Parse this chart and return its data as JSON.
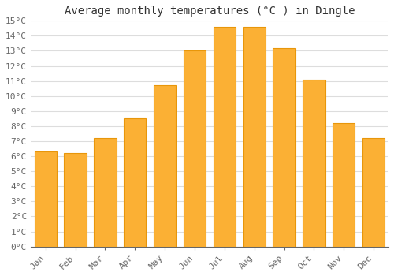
{
  "title": "Average monthly temperatures (°C ) in Dingle",
  "months": [
    "Jan",
    "Feb",
    "Mar",
    "Apr",
    "May",
    "Jun",
    "Jul",
    "Aug",
    "Sep",
    "Oct",
    "Nov",
    "Dec"
  ],
  "values": [
    6.3,
    6.2,
    7.2,
    8.5,
    10.7,
    13.0,
    14.6,
    14.6,
    13.2,
    11.1,
    8.2,
    7.2
  ],
  "bar_color": "#FBB034",
  "bar_edge_color": "#E8960A",
  "ylim": [
    0,
    15
  ],
  "yticks": [
    0,
    1,
    2,
    3,
    4,
    5,
    6,
    7,
    8,
    9,
    10,
    11,
    12,
    13,
    14,
    15
  ],
  "background_color": "#ffffff",
  "grid_color": "#dddddd",
  "title_fontsize": 10,
  "tick_fontsize": 8,
  "font_family": "monospace"
}
